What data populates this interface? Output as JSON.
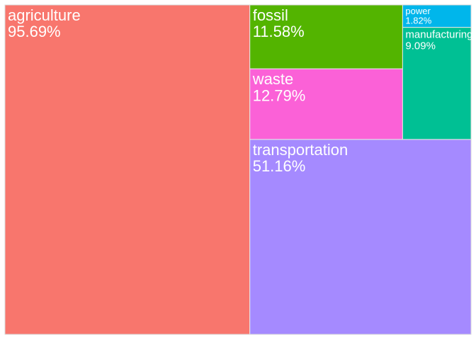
{
  "chart_data": {
    "type": "treemap",
    "title": "",
    "tiles": [
      {
        "name": "agriculture",
        "percent_label": "95.69%",
        "value": 95.69,
        "color": "#F8766D"
      },
      {
        "name": "transportation",
        "percent_label": "51.16%",
        "value": 51.16,
        "color": "#A58AFF"
      },
      {
        "name": "waste",
        "percent_label": "12.79%",
        "value": 12.79,
        "color": "#FB61D7"
      },
      {
        "name": "fossil",
        "percent_label": "11.58%",
        "value": 11.58,
        "color": "#53B400"
      },
      {
        "name": "manufacturing",
        "percent_label": "9.09%",
        "value": 9.09,
        "color": "#00C094"
      },
      {
        "name": "power",
        "percent_label": "1.82%",
        "value": 1.82,
        "color": "#00B6EB"
      }
    ]
  }
}
